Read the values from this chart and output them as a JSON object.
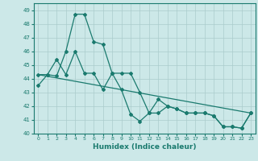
{
  "xlabel": "Humidex (Indice chaleur)",
  "xlim": [
    -0.5,
    23.5
  ],
  "ylim": [
    40,
    49.5
  ],
  "yticks": [
    40,
    41,
    42,
    43,
    44,
    45,
    46,
    47,
    48,
    49
  ],
  "xticks": [
    0,
    1,
    2,
    3,
    4,
    5,
    6,
    7,
    8,
    9,
    10,
    11,
    12,
    13,
    14,
    15,
    16,
    17,
    18,
    19,
    20,
    21,
    22,
    23
  ],
  "line_color": "#1a7a6e",
  "bg_color": "#cce8e8",
  "grid_color": "#aacccc",
  "series1_x": [
    0,
    1,
    2,
    3,
    4,
    5,
    6,
    7,
    8,
    9,
    10,
    11,
    12,
    13,
    14,
    15,
    16,
    17,
    18,
    19,
    20,
    21,
    22,
    23
  ],
  "series1_y": [
    43.5,
    44.3,
    44.2,
    46.0,
    48.7,
    48.7,
    46.7,
    46.5,
    44.4,
    43.2,
    41.4,
    40.9,
    41.5,
    41.5,
    42.0,
    41.8,
    41.5,
    41.5,
    41.5,
    41.3,
    40.5,
    40.5,
    40.4,
    41.5
  ],
  "series2_x": [
    0,
    1,
    2,
    3,
    4,
    5,
    6,
    7,
    8,
    9,
    10,
    11,
    12,
    13,
    14,
    15,
    16,
    17,
    18,
    19,
    20,
    21,
    22,
    23
  ],
  "series2_y": [
    44.3,
    44.3,
    45.4,
    44.3,
    46.0,
    44.4,
    44.4,
    43.2,
    44.4,
    44.4,
    44.4,
    43.0,
    41.5,
    42.5,
    42.0,
    41.8,
    41.5,
    41.5,
    41.5,
    41.3,
    40.5,
    40.5,
    40.4,
    41.5
  ],
  "series3_x": [
    0,
    23
  ],
  "series3_y": [
    44.3,
    41.5
  ]
}
